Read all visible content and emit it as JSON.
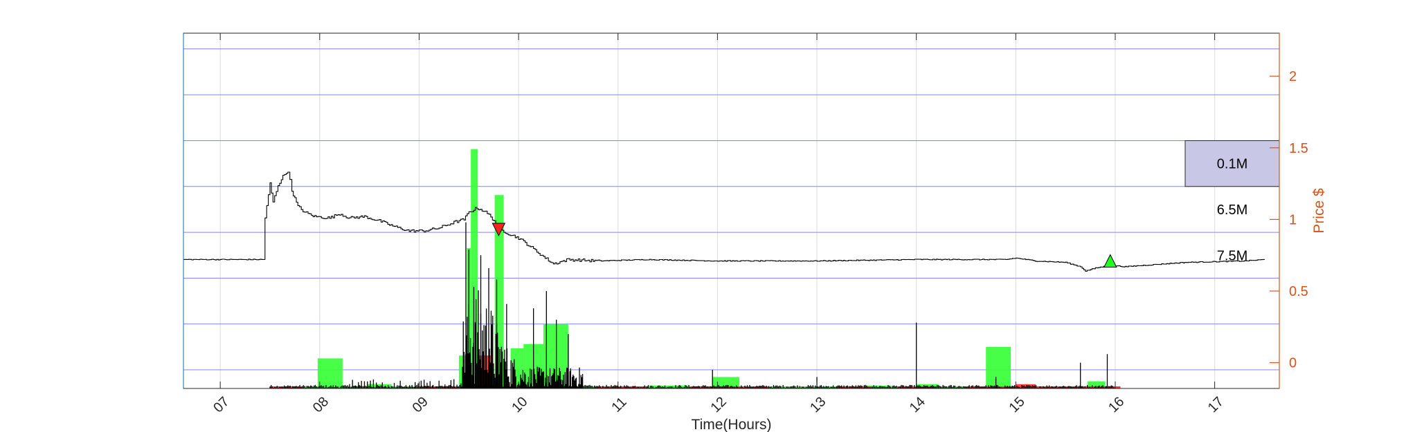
{
  "chart_data": {
    "type": "line",
    "xlabel": "Time(Hours)",
    "ylabel": "Price $",
    "x_ticks": [
      "07",
      "08",
      "09",
      "10",
      "11",
      "12",
      "13",
      "14",
      "15",
      "16",
      "17"
    ],
    "xlim": [
      6.63,
      17.65
    ],
    "y_ticks": [
      "0",
      "0.5",
      "1",
      "1.5",
      "2"
    ],
    "ylim": [
      -0.18,
      2.3
    ],
    "grid": true,
    "colors": {
      "price_line": "#000000",
      "buy_volume": "#33ff33",
      "sell_volume": "#ff3333",
      "volume_spikes": "#000000",
      "right_axis": "#d95319",
      "price_levels": "#8080ff",
      "highlight_box": "#c8c8e6"
    },
    "price_series": [
      {
        "x": 6.63,
        "y": 0.72
      },
      {
        "x": 7.45,
        "y": 0.72
      },
      {
        "x": 7.45,
        "y": 1.01
      },
      {
        "x": 7.5,
        "y": 1.25
      },
      {
        "x": 7.53,
        "y": 1.12
      },
      {
        "x": 7.58,
        "y": 1.24
      },
      {
        "x": 7.63,
        "y": 1.3
      },
      {
        "x": 7.68,
        "y": 1.34
      },
      {
        "x": 7.72,
        "y": 1.2
      },
      {
        "x": 7.78,
        "y": 1.09
      },
      {
        "x": 7.85,
        "y": 1.05
      },
      {
        "x": 7.95,
        "y": 1.02
      },
      {
        "x": 8.1,
        "y": 1.01
      },
      {
        "x": 8.2,
        "y": 1.04
      },
      {
        "x": 8.3,
        "y": 1.01
      },
      {
        "x": 8.45,
        "y": 1.02
      },
      {
        "x": 8.6,
        "y": 0.99
      },
      {
        "x": 8.75,
        "y": 0.95
      },
      {
        "x": 8.9,
        "y": 0.92
      },
      {
        "x": 9.05,
        "y": 0.92
      },
      {
        "x": 9.2,
        "y": 0.94
      },
      {
        "x": 9.35,
        "y": 0.98
      },
      {
        "x": 9.45,
        "y": 1.0
      },
      {
        "x": 9.5,
        "y": 1.05
      },
      {
        "x": 9.58,
        "y": 1.08
      },
      {
        "x": 9.65,
        "y": 1.06
      },
      {
        "x": 9.72,
        "y": 1.02
      },
      {
        "x": 9.82,
        "y": 0.93
      },
      {
        "x": 9.9,
        "y": 0.9
      },
      {
        "x": 10.0,
        "y": 0.87
      },
      {
        "x": 10.1,
        "y": 0.82
      },
      {
        "x": 10.25,
        "y": 0.74
      },
      {
        "x": 10.35,
        "y": 0.69
      },
      {
        "x": 10.5,
        "y": 0.72
      },
      {
        "x": 10.8,
        "y": 0.71
      },
      {
        "x": 11.3,
        "y": 0.72
      },
      {
        "x": 12.0,
        "y": 0.71
      },
      {
        "x": 13.0,
        "y": 0.71
      },
      {
        "x": 14.0,
        "y": 0.72
      },
      {
        "x": 14.9,
        "y": 0.72
      },
      {
        "x": 15.0,
        "y": 0.73
      },
      {
        "x": 15.2,
        "y": 0.71
      },
      {
        "x": 15.5,
        "y": 0.7
      },
      {
        "x": 15.65,
        "y": 0.67
      },
      {
        "x": 15.7,
        "y": 0.64
      },
      {
        "x": 15.8,
        "y": 0.66
      },
      {
        "x": 15.95,
        "y": 0.68
      },
      {
        "x": 16.1,
        "y": 0.67
      },
      {
        "x": 16.3,
        "y": 0.68
      },
      {
        "x": 16.5,
        "y": 0.69
      },
      {
        "x": 16.7,
        "y": 0.7
      },
      {
        "x": 17.3,
        "y": 0.71
      },
      {
        "x": 17.5,
        "y": 0.72
      }
    ],
    "markers": [
      {
        "type": "sell",
        "shape": "triangle-down",
        "color": "#ff2020",
        "x": 9.8,
        "y": 0.93
      },
      {
        "type": "buy",
        "shape": "triangle-up",
        "color": "#20ff20",
        "x": 15.95,
        "y": 0.71
      }
    ],
    "price_levels": [
      -0.05,
      0.27,
      0.59,
      0.91,
      1.23,
      1.55,
      1.87,
      2.19
    ],
    "volume_profile": [
      {
        "label": "0.1M",
        "y0": 1.23,
        "y1": 1.55,
        "highlighted": true
      },
      {
        "label": "6.5M",
        "y0": 0.91,
        "y1": 1.23,
        "highlighted": false
      },
      {
        "label": "7.5M",
        "y0": 0.59,
        "y1": 0.91,
        "highlighted": false
      }
    ],
    "buy_volume_bars": [
      {
        "x0": 7.98,
        "x1": 8.23,
        "top": 0.03
      },
      {
        "x0": 8.48,
        "x1": 8.72,
        "top": -0.15
      },
      {
        "x0": 9.4,
        "x1": 9.48,
        "top": 0.05
      },
      {
        "x0": 9.48,
        "x1": 9.52,
        "top": 0.8
      },
      {
        "x0": 9.52,
        "x1": 9.59,
        "top": 1.49
      },
      {
        "x0": 9.76,
        "x1": 9.85,
        "top": 1.17
      },
      {
        "x0": 9.92,
        "x1": 10.05,
        "top": 0.1
      },
      {
        "x0": 10.05,
        "x1": 10.25,
        "top": 0.13
      },
      {
        "x0": 10.25,
        "x1": 10.5,
        "top": 0.27
      },
      {
        "x0": 11.3,
        "x1": 11.7,
        "top": -0.16
      },
      {
        "x0": 11.95,
        "x1": 12.22,
        "top": -0.1
      },
      {
        "x0": 13.5,
        "x1": 13.75,
        "top": -0.16
      },
      {
        "x0": 14.0,
        "x1": 14.22,
        "top": -0.15
      },
      {
        "x0": 14.7,
        "x1": 14.95,
        "top": 0.11
      },
      {
        "x0": 15.72,
        "x1": 15.9,
        "top": -0.13
      }
    ],
    "sell_volume_bars": [
      {
        "x0": 9.6,
        "x1": 9.72,
        "top": 0.05
      },
      {
        "x0": 15.0,
        "x1": 15.2,
        "top": -0.15
      }
    ]
  }
}
